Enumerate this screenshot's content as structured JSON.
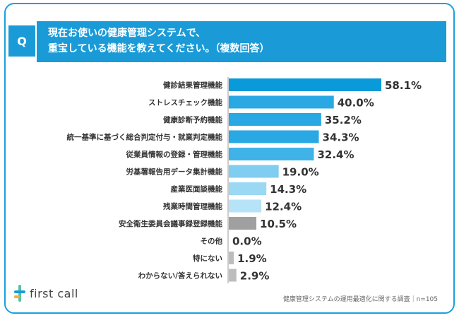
{
  "question": {
    "badge": "Q",
    "line1": "現在お使いの健康管理システムで、",
    "line2": "重宝している機能を教えてください。（複数回答）"
  },
  "brand": {
    "logo_text": "first call"
  },
  "source_note": "健康管理システムの運用最適化に関する調査｜n=105",
  "chart_data": {
    "type": "bar",
    "orientation": "horizontal",
    "categories": [
      "健診結果管理機能",
      "ストレスチェック機能",
      "健康診断予約機能",
      "統一基準に基づく総合判定付与・就業判定機能",
      "従業員情報の登録・管理機能",
      "労基署報告用データ集計機能",
      "産業医面談機能",
      "残業時間管理機能",
      "安全衛生委員会議事録登録機能",
      "その他",
      "特にない",
      "わからない/答えられない"
    ],
    "values": [
      58.1,
      40.0,
      35.2,
      34.3,
      32.4,
      19.0,
      14.3,
      12.4,
      10.5,
      0.0,
      1.9,
      2.9
    ],
    "value_labels": [
      "58.1%",
      "40.0%",
      "35.2%",
      "34.3%",
      "32.4%",
      "19.0%",
      "14.3%",
      "12.4%",
      "10.5%",
      "0.0%",
      "1.9%",
      "2.9%"
    ],
    "colors": [
      "#0a9ad9",
      "#2aa8e3",
      "#2aa8e3",
      "#2aa8e3",
      "#3fb2e8",
      "#7fcdf0",
      "#9ad8f3",
      "#b6e3f7",
      "#a0a0a0",
      "#bdbdbd",
      "#bdbdbd",
      "#bdbdbd"
    ],
    "xlim": [
      0,
      60
    ],
    "grid": false,
    "legend": "none"
  }
}
